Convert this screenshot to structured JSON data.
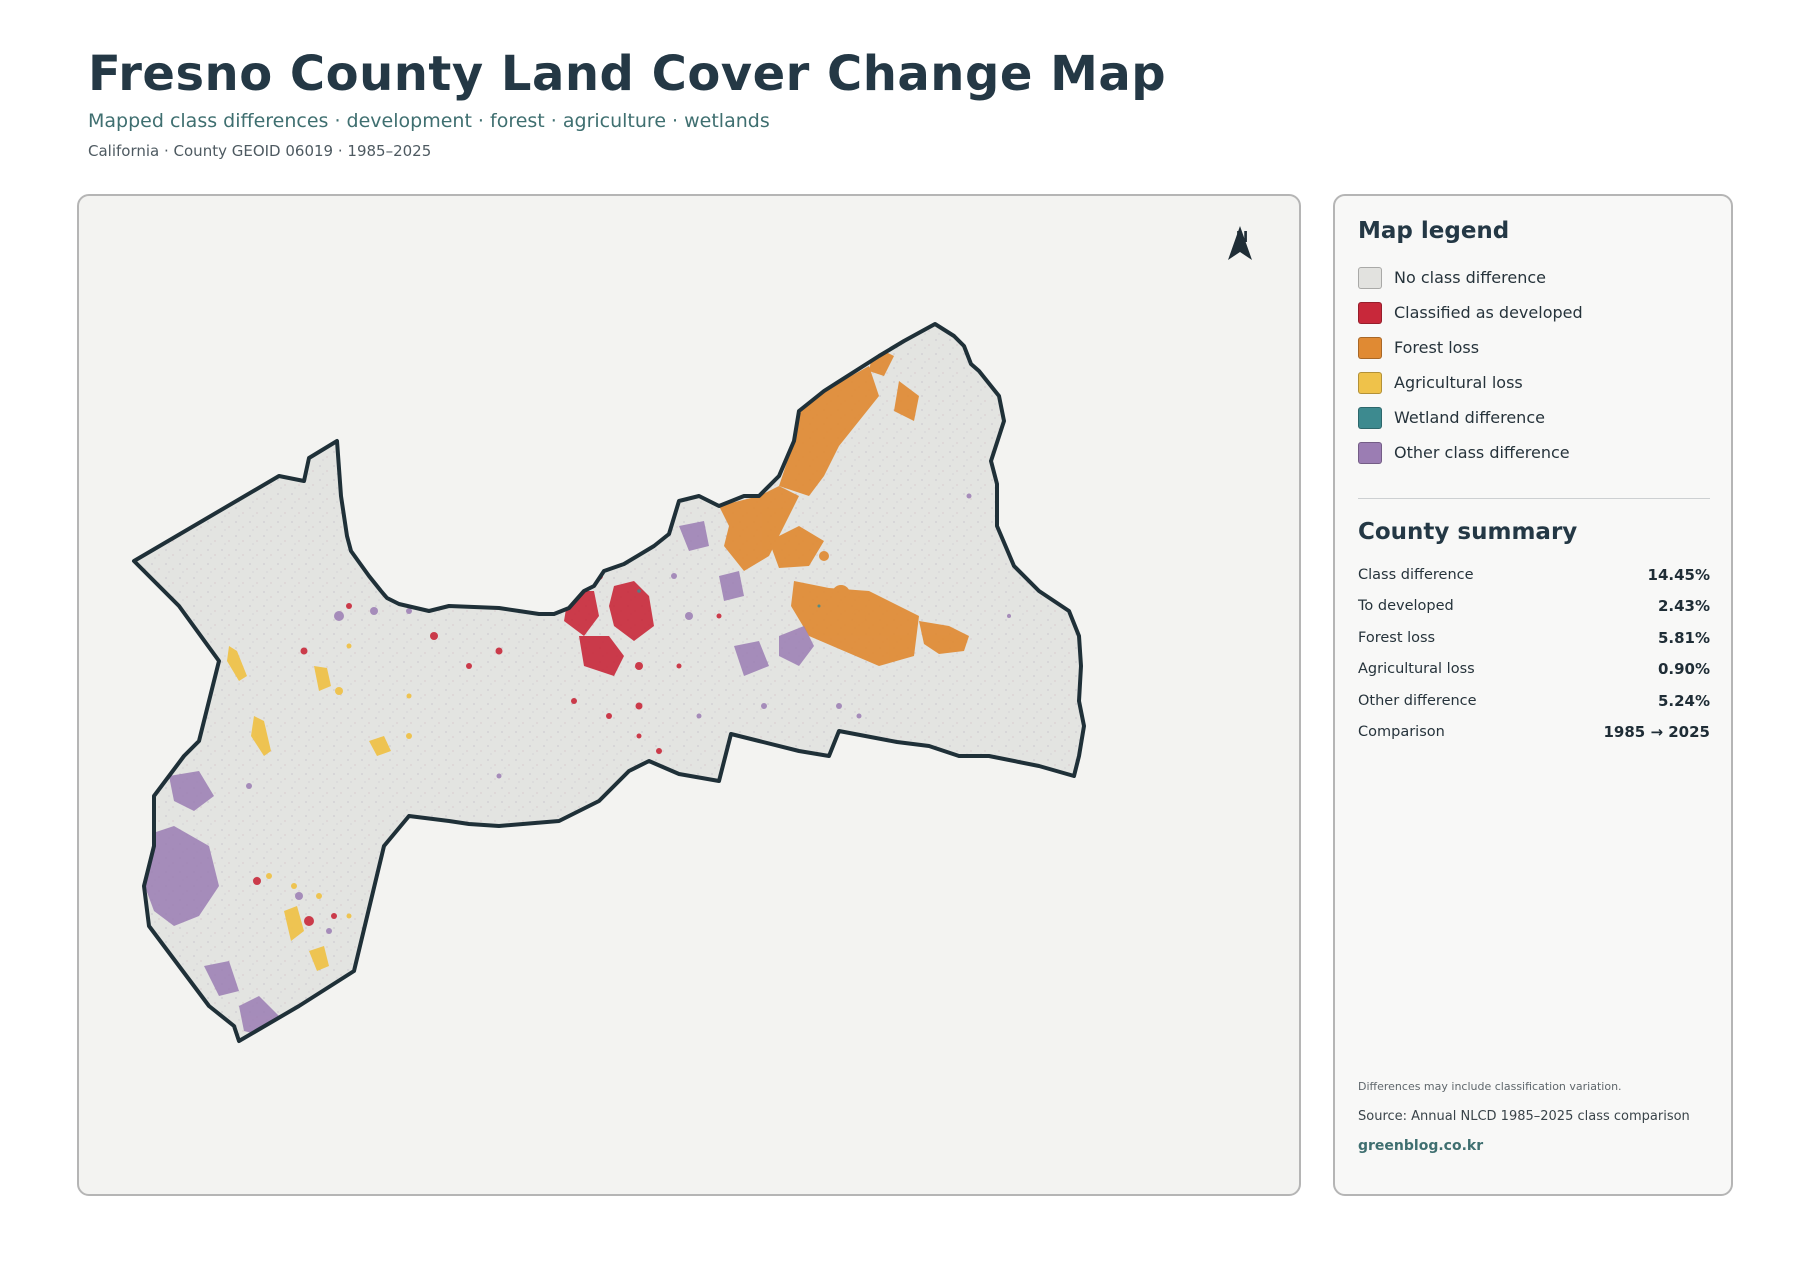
{
  "header": {
    "title": "Fresno County Land Cover Change Map",
    "subtitle": "Mapped class differences · development · forest · agriculture · wetlands",
    "meta": "California · County GEOID 06019 · 1985–2025"
  },
  "map": {
    "north_label": "N",
    "colors": {
      "background": "#f3f3f1",
      "county_fill": "#e3e4e1",
      "boundary": "#1f3038",
      "developed": "#c8283a",
      "forest_loss": "#e08a33",
      "agricultural_loss": "#efc24a",
      "wetland": "#3d8a8f",
      "other": "#9b7db3"
    }
  },
  "legend": {
    "title": "Map legend",
    "items": [
      {
        "label": "No class difference",
        "color": "#e2e2df"
      },
      {
        "label": "Classified as developed",
        "color": "#c8283a"
      },
      {
        "label": "Forest loss",
        "color": "#e08a33"
      },
      {
        "label": "Agricultural loss",
        "color": "#efc24a"
      },
      {
        "label": "Wetland difference",
        "color": "#3d8a8f"
      },
      {
        "label": "Other class difference",
        "color": "#9b7db3"
      }
    ]
  },
  "summary": {
    "title": "County summary",
    "rows": [
      {
        "label": "Class difference",
        "value": "14.45%"
      },
      {
        "label": "To developed",
        "value": "2.43%"
      },
      {
        "label": "Forest loss",
        "value": "5.81%"
      },
      {
        "label": "Agricultural loss",
        "value": "0.90%"
      },
      {
        "label": "Other difference",
        "value": "5.24%"
      },
      {
        "label": "Comparison",
        "value": "1985 → 2025"
      }
    ]
  },
  "footer": {
    "note": "Differences may include classification variation.",
    "source": "Source: Annual NLCD 1985–2025 class comparison",
    "site": "greenblog.co.kr"
  }
}
